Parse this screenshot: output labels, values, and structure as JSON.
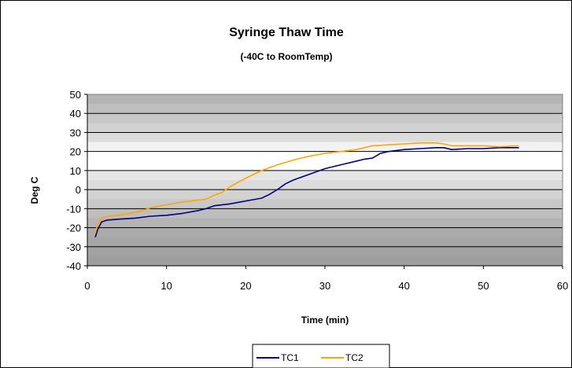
{
  "chart_data": {
    "type": "line",
    "title": "Syringe Thaw Time",
    "subtitle": "(-40C to RoomTemp)",
    "xlabel": "Time (min)",
    "ylabel": "Deg C",
    "xlim": [
      0,
      60
    ],
    "ylim": [
      -40,
      50
    ],
    "x_ticks": [
      0,
      10,
      20,
      30,
      40,
      50,
      60
    ],
    "y_ticks": [
      -40,
      -30,
      -20,
      -10,
      0,
      10,
      20,
      30,
      40,
      50
    ],
    "grid": true,
    "legend_position": "bottom",
    "series": [
      {
        "name": "TC1",
        "color": "#000080",
        "x": [
          1,
          1.3,
          1.8,
          2.5,
          4,
          6,
          8,
          10,
          12,
          14,
          15,
          16,
          18,
          20,
          22,
          23,
          24,
          25,
          26,
          28,
          30,
          32,
          34,
          35,
          36,
          37,
          38,
          40,
          42,
          44,
          45,
          46,
          48,
          50,
          52,
          54.5
        ],
        "y": [
          -25,
          -21,
          -17,
          -16,
          -15.5,
          -15,
          -14,
          -13.5,
          -12.5,
          -11,
          -10,
          -8.5,
          -7.5,
          -6,
          -4.5,
          -2.5,
          0,
          3,
          5,
          8,
          11,
          13,
          15,
          16,
          16.5,
          19,
          20,
          21,
          21.5,
          22,
          22,
          21,
          21.5,
          21.5,
          22,
          22
        ]
      },
      {
        "name": "TC2",
        "color": "#FFA500",
        "x": [
          1,
          1.3,
          1.8,
          2.5,
          4,
          6,
          7,
          8,
          10,
          12,
          14,
          15,
          16,
          17,
          18,
          20,
          22,
          24,
          26,
          28,
          30,
          32,
          34,
          36,
          38,
          40,
          42,
          44,
          45,
          46,
          48,
          50,
          52,
          54.5
        ],
        "y": [
          -23,
          -18,
          -15,
          -14,
          -13.5,
          -12,
          -11,
          -9.5,
          -8,
          -6.5,
          -5.5,
          -5,
          -3,
          -1.5,
          1.5,
          6,
          10,
          13,
          15.5,
          17.5,
          19,
          20,
          21,
          23,
          23.5,
          24,
          24.5,
          24.5,
          24,
          23,
          23,
          23,
          22.5,
          23
        ]
      }
    ]
  }
}
